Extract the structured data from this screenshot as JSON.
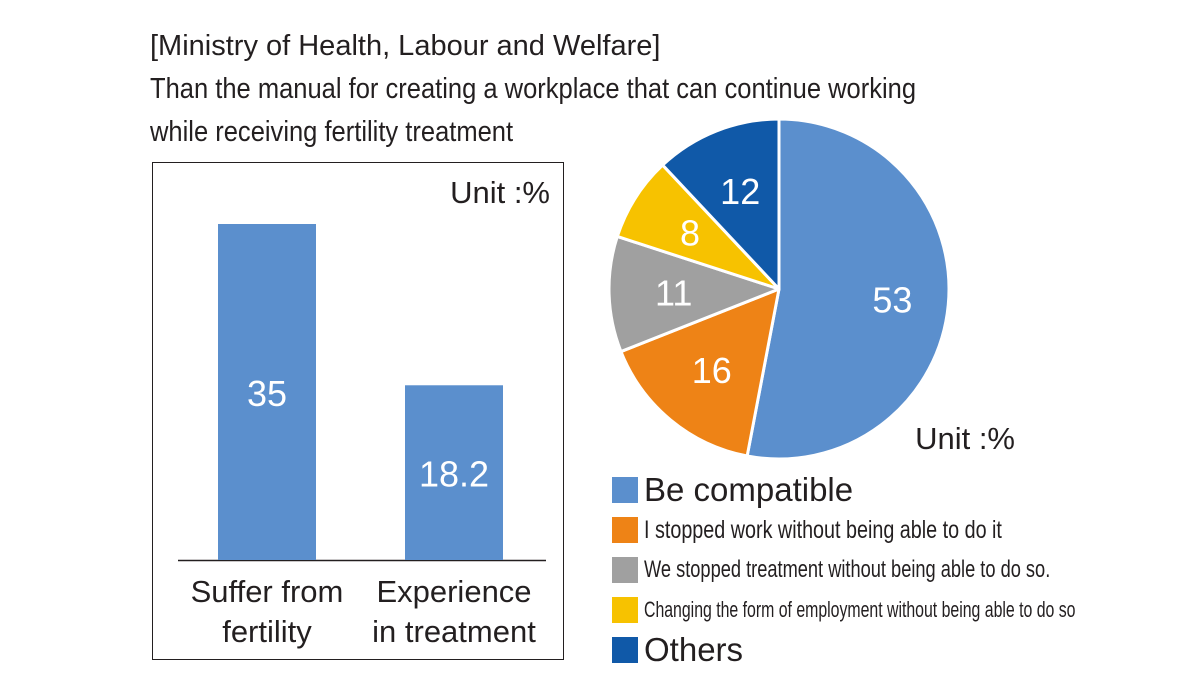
{
  "header": {
    "line1": "[Ministry of Health, Labour and Welfare]",
    "line2": "Than the manual for creating a workplace that can continue working",
    "line3": "while receiving fertility treatment"
  },
  "chart_data": [
    {
      "type": "bar",
      "unit_label": "Unit :%",
      "categories": [
        [
          "Suffer from",
          "fertility"
        ],
        [
          "Experience",
          "in treatment"
        ]
      ],
      "values": [
        35,
        18.2
      ],
      "value_labels": [
        "35",
        "18.2"
      ],
      "colors": [
        "#5b8fcd"
      ],
      "ylim": [
        0,
        35
      ]
    },
    {
      "type": "pie",
      "unit_label": "Unit :%",
      "slices": [
        {
          "label": "Be compatible",
          "value": 53,
          "value_label": "53",
          "color": "#5b8fcd"
        },
        {
          "label": "I stopped work without being able to do it",
          "value": 16,
          "value_label": "16",
          "color": "#ee8316"
        },
        {
          "label": "We stopped treatment without being able to do so.",
          "value": 11,
          "value_label": "11",
          "color": "#a0a0a0"
        },
        {
          "label": "Changing the form of employment without being able to do so",
          "value": 8,
          "value_label": "8",
          "color": "#f7c200"
        },
        {
          "label": "Others",
          "value": 12,
          "value_label": "12",
          "color": "#1059a8"
        }
      ]
    }
  ]
}
